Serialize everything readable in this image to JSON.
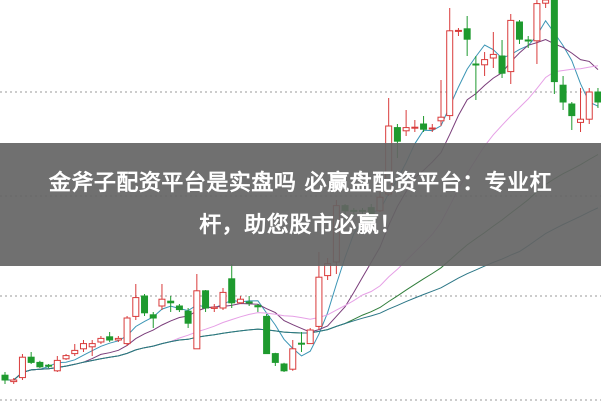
{
  "banner": {
    "line1": "金斧子配资平台是实盘吗 必赢盘配资平台：专业杠",
    "line2": "杆，助您股市必赢！"
  },
  "chart_data": {
    "type": "candlestick",
    "title": "",
    "xlabel": "",
    "ylabel": "",
    "ylim": [
      0,
      100
    ],
    "grid": "horizontal-dotted",
    "gridlines": [
      77,
      51,
      26,
      0
    ],
    "colors": {
      "up": "#d93a3a",
      "down": "#1e9a2e",
      "grid": "#9a9a9a"
    },
    "ma_lines": [
      {
        "period": 5,
        "color": "#3b95b5"
      },
      {
        "period": 10,
        "color": "#7a3d7a"
      },
      {
        "period": 20,
        "color": "#e6a0e6"
      },
      {
        "period": 40,
        "color": "#2f7d3a"
      },
      {
        "period": 60,
        "color": "#2b7686"
      }
    ],
    "ohlc_columns": [
      "open",
      "close",
      "high",
      "low"
    ],
    "ohlc": [
      [
        6.2,
        5,
        7,
        4
      ],
      [
        4.6,
        5,
        5.5,
        4
      ],
      [
        5.6,
        10.7,
        11.5,
        5
      ],
      [
        10.7,
        9.4,
        12,
        9
      ],
      [
        9.4,
        8.3,
        9.8,
        8
      ],
      [
        8.7,
        8.5,
        9,
        8
      ],
      [
        7.3,
        9.9,
        11,
        7
      ],
      [
        10.3,
        11.1,
        11.5,
        10
      ],
      [
        11.6,
        12.4,
        14,
        11
      ],
      [
        12.8,
        14.1,
        15,
        12
      ],
      [
        13.3,
        14.1,
        15,
        11
      ],
      [
        14.5,
        15.4,
        16,
        14
      ],
      [
        15.8,
        15,
        17,
        14.5
      ],
      [
        15,
        15.4,
        16,
        14.5
      ],
      [
        14.1,
        20.5,
        21,
        13.5
      ],
      [
        20.9,
        25.6,
        29,
        20
      ],
      [
        26,
        21.8,
        26.5,
        21
      ],
      [
        21.3,
        20.5,
        22,
        18
      ],
      [
        23.5,
        25.2,
        29,
        22.5
      ],
      [
        24.7,
        24.3,
        26,
        22
      ],
      [
        23.5,
        22.6,
        24,
        22
      ],
      [
        22.2,
        19.2,
        23,
        18
      ],
      [
        12.8,
        27.3,
        31.5,
        12.8
      ],
      [
        27.3,
        23,
        27.5,
        22
      ],
      [
        22.9,
        23.2,
        24,
        22
      ],
      [
        23,
        26.9,
        28,
        22.5
      ],
      [
        30.3,
        24.3,
        34,
        23
      ],
      [
        24.3,
        25.2,
        26,
        24
      ],
      [
        24.5,
        24.3,
        26,
        23.5
      ],
      [
        23.6,
        23.3,
        24,
        22
      ],
      [
        20.9,
        11.6,
        21.5,
        11.5
      ],
      [
        11.6,
        9.4,
        11.8,
        8.5
      ],
      [
        9,
        7.3,
        9.3,
        7
      ],
      [
        7.7,
        12.8,
        15,
        7.3
      ],
      [
        14.2,
        14,
        17,
        12
      ],
      [
        14.1,
        17.5,
        18,
        14
      ],
      [
        18.4,
        30.7,
        37,
        17.5
      ],
      [
        31.1,
        34.1,
        35.5,
        30
      ],
      [
        34.5,
        48.6,
        50,
        31.5
      ],
      [
        48.6,
        47.3,
        49,
        45
      ],
      [
        47.4,
        47.2,
        48,
        46
      ],
      [
        47.4,
        47.2,
        48,
        46
      ],
      [
        48.1,
        44.7,
        49,
        44
      ],
      [
        47.3,
        50.7,
        52,
        47
      ],
      [
        51.5,
        68.5,
        75.5,
        51
      ],
      [
        68.1,
        64.7,
        69,
        60.5
      ],
      [
        67.3,
        68.1,
        72.5,
        66
      ],
      [
        68,
        68.2,
        70,
        67
      ],
      [
        69,
        67.7,
        71,
        67
      ],
      [
        67.8,
        68,
        69,
        67
      ],
      [
        69.8,
        70.7,
        80,
        68.5
      ],
      [
        71.1,
        92.3,
        98,
        70
      ],
      [
        92.3,
        92.4,
        93,
        91
      ],
      [
        92.8,
        90.2,
        96,
        86
      ],
      [
        84,
        83.8,
        86,
        75
      ],
      [
        83.8,
        85.1,
        87,
        81
      ],
      [
        85.5,
        86.4,
        92,
        83
      ],
      [
        86,
        81.7,
        90,
        80.5
      ],
      [
        82.1,
        94.9,
        96.5,
        79
      ],
      [
        94.5,
        90.2,
        95,
        89
      ],
      [
        90,
        89.8,
        91,
        88
      ],
      [
        89.8,
        99.1,
        100,
        84
      ],
      [
        99.2,
        100,
        100,
        98
      ],
      [
        100,
        79.6,
        100,
        76.5
      ],
      [
        78.7,
        74.5,
        81,
        72.5
      ],
      [
        74,
        71.1,
        74.5,
        67.5
      ],
      [
        69.4,
        70.2,
        78,
        67
      ],
      [
        70.2,
        77,
        78,
        69
      ],
      [
        77,
        74.5,
        78,
        73
      ]
    ]
  }
}
